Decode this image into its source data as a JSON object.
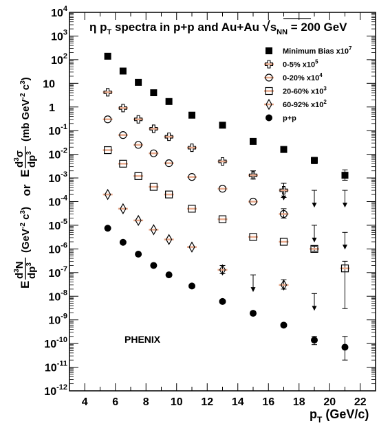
{
  "chart_data": {
    "type": "scatter",
    "title": "η p_T spectra in p+p and Au+Au √s_NN = 200 GeV",
    "title_parts": {
      "eta": "η p",
      "t_sub": "T",
      "mid": " spectra in p+p and Au+Au ",
      "s": "s",
      "nn_sub": "NN",
      "tail": " = 200 GeV"
    },
    "xlabel": "p_T (GeV/c)",
    "xlabel_parts": {
      "p": "p",
      "sub": "T",
      "rest": " (GeV/c)"
    },
    "ylabel_top": "E d³σ/dp³ (mb GeV⁻² c³)",
    "ylabel_top_parts": {
      "e": "E",
      "num": "d",
      "num_sup": "3",
      "sigma": "σ",
      "den": "dp",
      "den_sup": "3",
      "units": "(mb GeV",
      "units_sup": "-2",
      "units_mid": " c",
      "units_sup2": "3",
      "units_close": ")"
    },
    "ylabel_or": "or",
    "ylabel_bottom": "E d³N/dp³ (GeV⁻² c³)",
    "ylabel_bottom_parts": {
      "e": "E",
      "num": "d",
      "num_sup": "3",
      "n": "N",
      "den": "dp",
      "den_sup": "3",
      "units": "(GeV",
      "units_sup": "-2",
      "units_mid": " c",
      "units_sup2": "3",
      "units_close": ")"
    },
    "xlim": [
      3,
      23
    ],
    "ylim_log10": [
      -12,
      4
    ],
    "y_scale": "log",
    "x_ticks": [
      4,
      6,
      8,
      10,
      12,
      14,
      16,
      18,
      20,
      22
    ],
    "y_tick_exponents": [
      -12,
      -11,
      -10,
      -9,
      -8,
      -7,
      -6,
      -5,
      -4,
      -3,
      -2,
      -1,
      0,
      1,
      2,
      3,
      4
    ],
    "y_tick_labels": {
      "-12": [
        "10",
        "-12"
      ],
      "-11": [
        "10",
        "-11"
      ],
      "-10": [
        "10",
        "-10"
      ],
      "-9": [
        "10",
        "-9"
      ],
      "-8": [
        "10",
        "-8"
      ],
      "-7": [
        "10",
        "-7"
      ],
      "-6": [
        "10",
        "-6"
      ],
      "-5": [
        "10",
        "-5"
      ],
      "-4": [
        "10",
        "-4"
      ],
      "-3": [
        "10",
        "-3"
      ],
      "-2": [
        "10",
        "-2"
      ],
      "-1": [
        "10",
        "-1"
      ],
      "0": [
        "1",
        ""
      ],
      "1": [
        "10",
        ""
      ],
      "2": [
        "10",
        "2"
      ],
      "3": [
        "10",
        "3"
      ],
      "4": [
        "10",
        "4"
      ]
    },
    "annotation": "PHENIX",
    "legend_position": "top-right",
    "series": [
      {
        "name": "Minimum Bias x10",
        "name_sup": "7",
        "marker": "filled-square",
        "points": [
          {
            "x": 5.5,
            "y": 140
          },
          {
            "x": 6.5,
            "y": 33
          },
          {
            "x": 7.5,
            "y": 11
          },
          {
            "x": 8.5,
            "y": 4
          },
          {
            "x": 9.5,
            "y": 1.7
          },
          {
            "x": 11,
            "y": 0.45
          },
          {
            "x": 13,
            "y": 0.17
          },
          {
            "x": 15,
            "y": 0.035
          },
          {
            "x": 17,
            "y": 0.016
          },
          {
            "x": 19,
            "y": 0.0055,
            "err_lo": 0.004,
            "err_hi": 0.0075
          },
          {
            "x": 21,
            "y": 0.0013,
            "err_lo": 0.0008,
            "err_hi": 0.0022
          }
        ],
        "upper_limits": []
      },
      {
        "name": "0-5% x10",
        "name_sup": "5",
        "marker": "open-cross",
        "points": [
          {
            "x": 5.5,
            "y": 4.2
          },
          {
            "x": 6.5,
            "y": 0.9
          },
          {
            "x": 7.5,
            "y": 0.3
          },
          {
            "x": 8.5,
            "y": 0.12
          },
          {
            "x": 9.5,
            "y": 0.055
          },
          {
            "x": 11,
            "y": 0.019
          },
          {
            "x": 13,
            "y": 0.005
          },
          {
            "x": 15,
            "y": 0.0013,
            "err_lo": 0.0009,
            "err_hi": 0.002
          },
          {
            "x": 17,
            "y": 0.0003,
            "err_lo": 0.00015,
            "err_hi": 0.0006
          }
        ],
        "upper_limits": []
      },
      {
        "name": "0-20% x10",
        "name_sup": "4",
        "marker": "open-circle",
        "points": [
          {
            "x": 5.5,
            "y": 0.3
          },
          {
            "x": 6.5,
            "y": 0.065
          },
          {
            "x": 7.5,
            "y": 0.025
          },
          {
            "x": 8.5,
            "y": 0.011
          },
          {
            "x": 9.5,
            "y": 0.0042
          },
          {
            "x": 11,
            "y": 0.0011
          },
          {
            "x": 13,
            "y": 0.00035
          },
          {
            "x": 15,
            "y": 0.0001
          },
          {
            "x": 17,
            "y": 3e-05,
            "err_lo": 2e-05,
            "err_hi": 5e-05
          }
        ],
        "upper_limits": [
          {
            "x": 19,
            "y": 0.0003
          }
        ]
      },
      {
        "name": "20-60% x10",
        "name_sup": "3",
        "marker": "open-square",
        "points": [
          {
            "x": 5.5,
            "y": 0.015
          },
          {
            "x": 6.5,
            "y": 0.004
          },
          {
            "x": 7.5,
            "y": 0.0012
          },
          {
            "x": 8.5,
            "y": 0.00042
          },
          {
            "x": 9.5,
            "y": 0.0002
          },
          {
            "x": 11,
            "y": 5e-05
          },
          {
            "x": 13,
            "y": 1.8e-05
          },
          {
            "x": 15,
            "y": 3.2e-06
          },
          {
            "x": 17,
            "y": 2e-06
          },
          {
            "x": 19,
            "y": 1e-06,
            "err_lo": 8e-07,
            "err_hi": 1.3e-06
          },
          {
            "x": 21,
            "y": 1.5e-07,
            "err_lo": 3e-09,
            "err_hi": 3e-07
          }
        ],
        "upper_limits": [
          {
            "x": 17,
            "y": 0.0006
          },
          {
            "x": 21,
            "y": 0.0003
          }
        ]
      },
      {
        "name": "60-92% x10",
        "name_sup": "2",
        "marker": "open-diamond",
        "points": [
          {
            "x": 5.5,
            "y": 0.0002
          },
          {
            "x": 6.5,
            "y": 5e-05
          },
          {
            "x": 7.5,
            "y": 1.6e-05
          },
          {
            "x": 8.5,
            "y": 6.5e-06
          },
          {
            "x": 9.5,
            "y": 2.5e-06
          },
          {
            "x": 11,
            "y": 1.2e-06
          },
          {
            "x": 13,
            "y": 1.3e-07,
            "err_lo": 9e-08,
            "err_hi": 2e-07
          },
          {
            "x": 17,
            "y": 3e-08,
            "err_lo": 2e-08,
            "err_hi": 5e-08
          }
        ],
        "upper_limits": [
          {
            "x": 19,
            "y": 1e-05
          },
          {
            "x": 21,
            "y": 5e-06
          }
        ]
      },
      {
        "name": "p+p",
        "name_sup": "",
        "marker": "filled-circle",
        "points": [
          {
            "x": 5.5,
            "y": 7.5e-06
          },
          {
            "x": 6.5,
            "y": 1.9e-06
          },
          {
            "x": 7.5,
            "y": 6e-07
          },
          {
            "x": 8.5,
            "y": 2e-07
          },
          {
            "x": 9.5,
            "y": 8e-08
          },
          {
            "x": 11,
            "y": 2.7e-08
          },
          {
            "x": 13,
            "y": 6e-09
          },
          {
            "x": 15,
            "y": 1.9e-09
          },
          {
            "x": 17,
            "y": 6e-10
          },
          {
            "x": 19,
            "y": 1.4e-10,
            "err_lo": 9e-11,
            "err_hi": 2e-10
          },
          {
            "x": 21,
            "y": 7e-11,
            "err_lo": 2e-11,
            "err_hi": 2e-10
          }
        ],
        "upper_limits": [
          {
            "x": 15,
            "y": 8e-08
          },
          {
            "x": 19,
            "y": 1.3e-08
          }
        ]
      }
    ]
  }
}
